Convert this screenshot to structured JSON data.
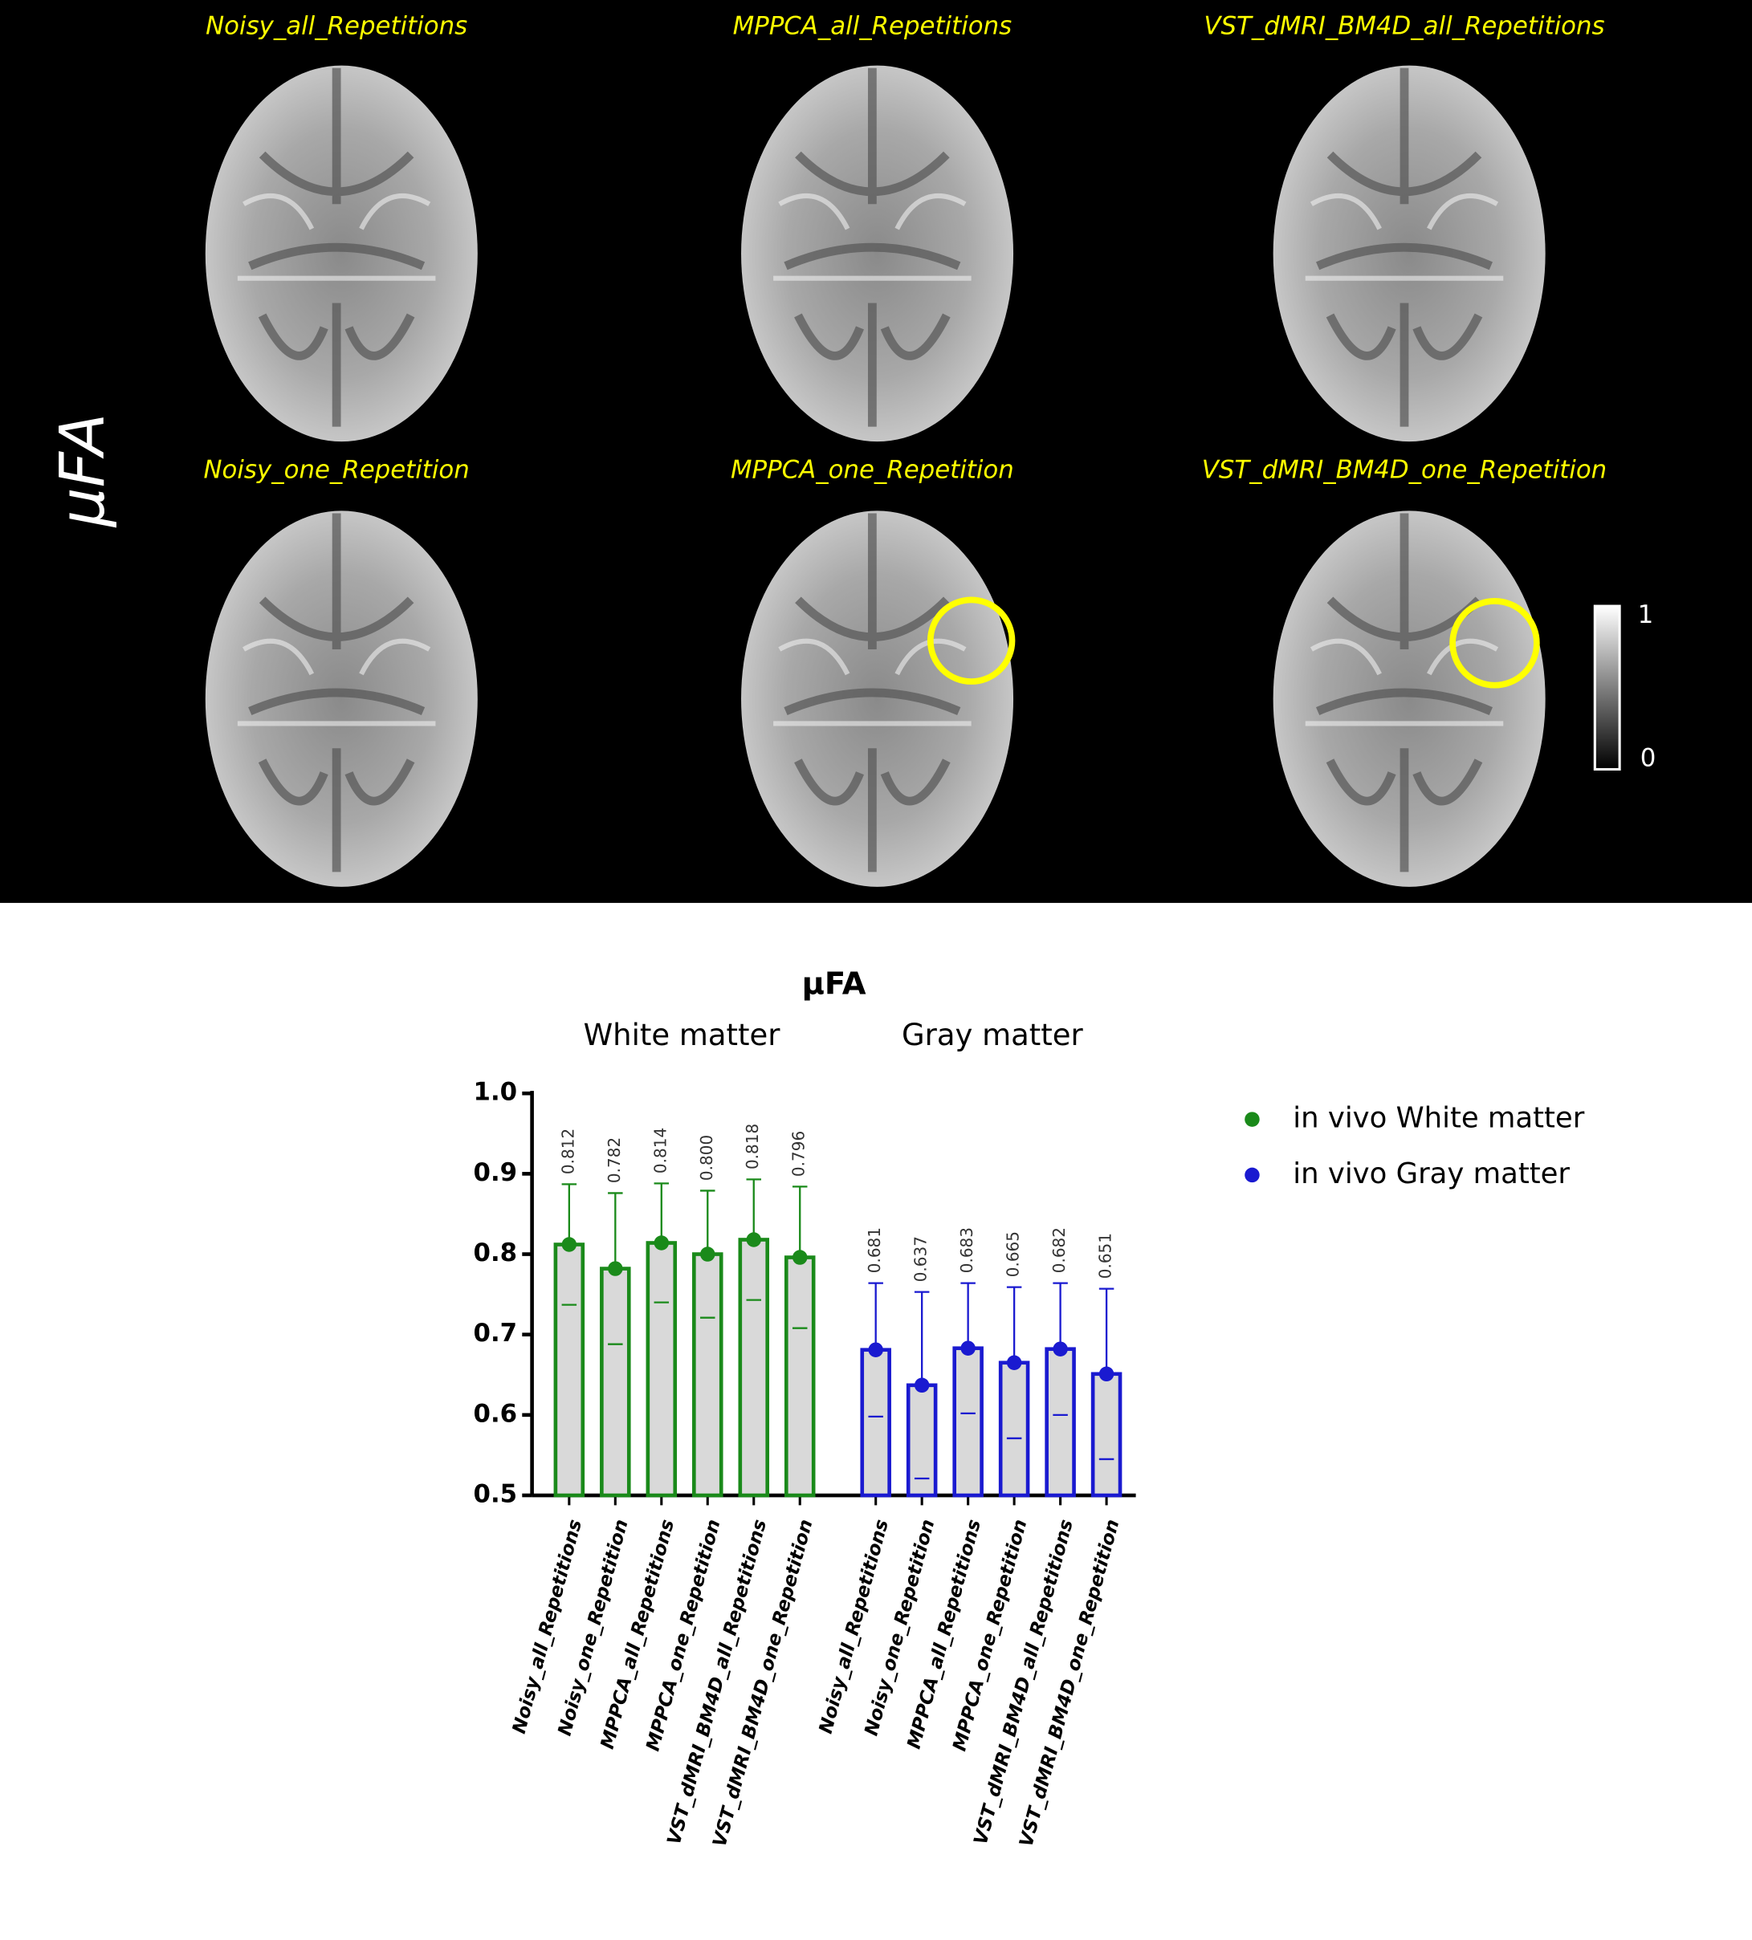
{
  "images": {
    "side_label": "μFA",
    "panels": [
      "Noisy_all_Repetitions",
      "MPPCA_all_Repetitions",
      "VST_dMRI_BM4D_all_Repetitions",
      "Noisy_one_Repetition",
      "MPPCA_one_Repetition",
      "VST_dMRI_BM4D_one_Repetition"
    ],
    "colorbar": {
      "top": "1",
      "bottom": "0"
    }
  },
  "chart_data": {
    "type": "bar",
    "title": "μFA",
    "annotations": [
      "White matter",
      "Gray matter"
    ],
    "categories": [
      "Noisy_all_Repetitions",
      "Noisy_one_Repetition",
      "MPPCA_all_Repetitions",
      "MPPCA_one_Repetition",
      "VST_dMRI_BM4D_all_Repetitions",
      "VST_dMRI_BM4D_one_Repetition",
      "Noisy_all_Repetitions",
      "Noisy_one_Repetition",
      "MPPCA_all_Repetitions",
      "MPPCA_one_Repetition",
      "VST_dMRI_BM4D_all_Repetitions",
      "VST_dMRI_BM4D_one_Repetition"
    ],
    "series": [
      {
        "name": "in vivo White matter",
        "color": "#1a8a1a",
        "values": [
          0.812,
          0.782,
          0.814,
          0.8,
          0.818,
          0.796,
          null,
          null,
          null,
          null,
          null,
          null
        ],
        "value_labels": [
          "0.812",
          "0.782",
          "0.814",
          "0.800",
          "0.818",
          "0.796",
          null,
          null,
          null,
          null,
          null,
          null
        ],
        "errors": [
          0.075,
          0.094,
          0.074,
          0.079,
          0.075,
          0.088,
          null,
          null,
          null,
          null,
          null,
          null
        ]
      },
      {
        "name": "in vivo Gray matter",
        "color": "#1a1ad0",
        "values": [
          null,
          null,
          null,
          null,
          null,
          null,
          0.681,
          0.637,
          0.683,
          0.665,
          0.682,
          0.651
        ],
        "value_labels": [
          null,
          null,
          null,
          null,
          null,
          null,
          "0.681",
          "0.637",
          "0.683",
          "0.665",
          "0.682",
          "0.651"
        ],
        "errors": [
          null,
          null,
          null,
          null,
          null,
          null,
          0.083,
          0.116,
          0.081,
          0.094,
          0.082,
          0.106
        ]
      }
    ],
    "ylim": [
      0.5,
      1.0
    ],
    "yticks": [
      0.5,
      0.6,
      0.7,
      0.8,
      0.9,
      {
        "value": 1.0,
        "label": "1.0"
      }
    ],
    "bar_fill": "#d9d9d9",
    "legend": "right"
  }
}
